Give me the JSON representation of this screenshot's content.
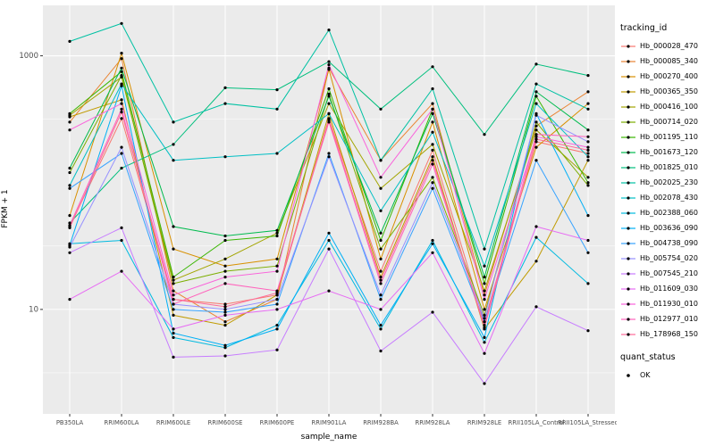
{
  "figure": {
    "ylabel": "FPKM + 1",
    "xlabel": "sample_name",
    "legend": {
      "tracking_title": "tracking_id",
      "quant_title": "quant_status",
      "quant_items": [
        {
          "label": "OK"
        }
      ]
    }
  },
  "chart_data": {
    "type": "line",
    "yscale": "log10",
    "ylim": [
      1.5,
      2500
    ],
    "panel_bg": "#EBEBEB",
    "grid_color": "#FFFFFF",
    "point_color": "#000000",
    "axis_text_color": "#4D4D4D",
    "yticks": [
      {
        "value": 10,
        "label": "10"
      },
      {
        "value": 1000,
        "label": "1000"
      }
    ],
    "minor_yticks": [
      3.162,
      31.62,
      316.2
    ],
    "x_categories": [
      "PB350LA",
      "RRIM600LA",
      "RRIM600LE",
      "RRIM600SE",
      "RRIM600PE",
      "RRIM901LA",
      "RRIM928BA",
      "RRIM928LA",
      "RRIM928LE",
      "RRII105LA_Control",
      "RRII105LA_Stressed"
    ],
    "series": [
      {
        "name": "Hb_000028_470",
        "color": "#F8766D",
        "values": [
          45,
          320,
          12,
          11,
          13,
          320,
          20,
          180,
          8,
          210,
          170
        ]
      },
      {
        "name": "Hb_000085_340",
        "color": "#EA8331",
        "values": [
          300,
          950,
          14,
          8,
          12,
          800,
          150,
          420,
          13,
          280,
          520
        ]
      },
      {
        "name": "Hb_000270_400",
        "color": "#D89000",
        "values": [
          55,
          1050,
          30,
          22,
          25,
          780,
          25,
          300,
          10,
          190,
          420
        ]
      },
      {
        "name": "Hb_000365_350",
        "color": "#C09B00",
        "values": [
          330,
          450,
          9,
          7.5,
          13,
          350,
          18,
          160,
          7,
          24,
          150
        ]
      },
      {
        "name": "Hb_000416_100",
        "color": "#A3A500",
        "values": [
          340,
          680,
          17,
          25,
          40,
          420,
          90,
          200,
          14,
          260,
          110
        ]
      },
      {
        "name": "Hb_000714_020",
        "color": "#7CAE00",
        "values": [
          120,
          700,
          16,
          20,
          22,
          500,
          30,
          110,
          9,
          300,
          95
        ]
      },
      {
        "name": "Hb_001195_110",
        "color": "#39B600",
        "values": [
          350,
          750,
          18,
          35,
          38,
          550,
          35,
          380,
          16,
          480,
          100
        ]
      },
      {
        "name": "Hb_001673_120",
        "color": "#00BB4E",
        "values": [
          130,
          800,
          45,
          38,
          42,
          480,
          40,
          350,
          18,
          520,
          260
        ]
      },
      {
        "name": "Hb_001825_010",
        "color": "#00BF7D",
        "values": [
          48,
          130,
          200,
          560,
          540,
          900,
          380,
          820,
          240,
          860,
          700
        ]
      },
      {
        "name": "Hb_002025_230",
        "color": "#00C1A3",
        "values": [
          1300,
          1800,
          300,
          420,
          380,
          1600,
          150,
          550,
          30,
          600,
          380
        ]
      },
      {
        "name": "Hb_002078_430",
        "color": "#00BFC4",
        "values": [
          95,
          600,
          150,
          160,
          170,
          350,
          60,
          250,
          22,
          420,
          160
        ]
      },
      {
        "name": "Hb_002388_060",
        "color": "#00BAE0",
        "values": [
          33,
          35,
          6,
          5,
          7.5,
          35,
          7,
          35,
          5.5,
          37,
          16
        ]
      },
      {
        "name": "Hb_003636_090",
        "color": "#00B0F6",
        "values": [
          32,
          580,
          6.5,
          5.2,
          7,
          40,
          7.5,
          33,
          6,
          350,
          55
        ]
      },
      {
        "name": "Hb_004738_090",
        "color": "#35A2FF",
        "values": [
          90,
          170,
          10,
          9.5,
          11,
          170,
          12,
          90,
          8,
          150,
          28
        ]
      },
      {
        "name": "Hb_005754_020",
        "color": "#9590FF",
        "values": [
          31,
          190,
          11,
          10,
          12,
          160,
          13,
          100,
          8.5,
          340,
          210
        ]
      },
      {
        "name": "Hb_007545_210",
        "color": "#C77CFF",
        "values": [
          28,
          44,
          4.2,
          4.3,
          4.8,
          30,
          4.7,
          9.5,
          2.6,
          10.5,
          6.8
        ]
      },
      {
        "name": "Hb_011609_030",
        "color": "#E76BF3",
        "values": [
          12,
          20,
          7,
          9,
          10,
          14,
          10,
          28,
          4.5,
          45,
          35
        ]
      },
      {
        "name": "Hb_011930_010",
        "color": "#FA62DB",
        "values": [
          260,
          420,
          13,
          18,
          20,
          850,
          110,
          380,
          12,
          230,
          190
        ]
      },
      {
        "name": "Hb_012977_010",
        "color": "#FF62BC",
        "values": [
          46,
          380,
          11,
          16,
          14,
          300,
          16,
          140,
          7.5,
          240,
          230
        ]
      },
      {
        "name": "Hb_178968_150",
        "color": "#FF6A98",
        "values": [
          44,
          360,
          12,
          10.5,
          13.5,
          310,
          17,
          150,
          7.2,
          220,
          180
        ]
      }
    ]
  }
}
